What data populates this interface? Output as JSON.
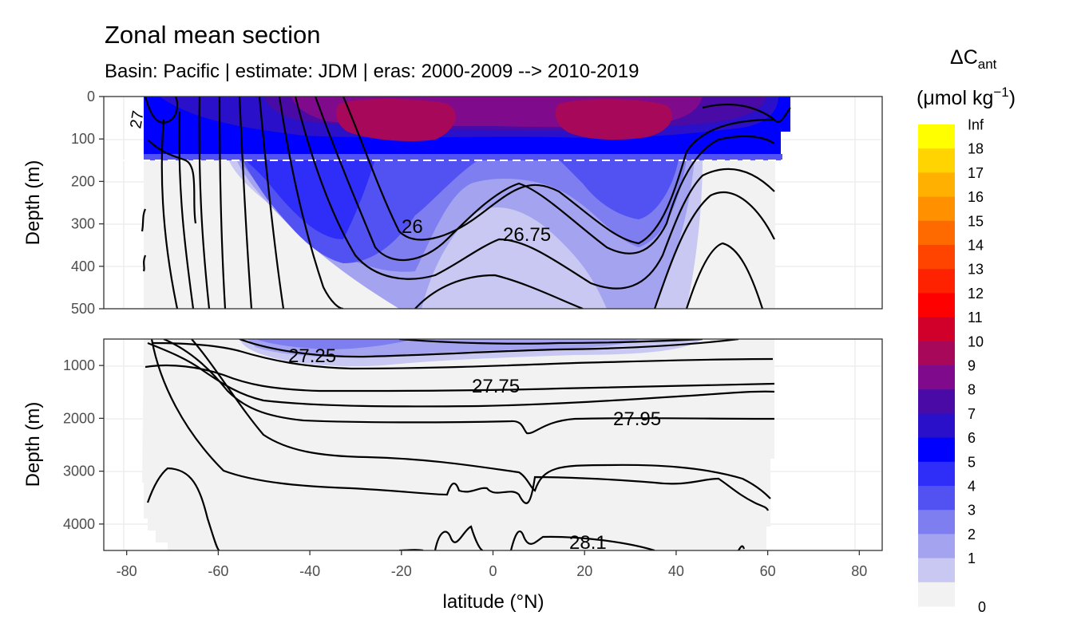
{
  "title": "Zonal mean section",
  "subtitle": "Basin: Pacific | estimate: JDM  | eras: 2000-2009 --> 2010-2019",
  "chart_data": {
    "type": "contour",
    "title": "Zonal mean section",
    "subtitle": "Basin: Pacific | estimate: JDM  | eras: 2000-2009 --> 2010-2019",
    "xlabel": "latitude (°N)",
    "ylabel": "Depth (m)",
    "xlim": [
      -85,
      85
    ],
    "x_ticks": [
      -80,
      -60,
      -40,
      -20,
      0,
      20,
      40,
      60,
      80
    ],
    "x_tick_labels": [
      "-80",
      "-60",
      "-40",
      "-20",
      "0",
      "20",
      "40",
      "60",
      "80"
    ],
    "panels": [
      {
        "name": "upper",
        "ylim": [
          500,
          0
        ],
        "y_ticks": [
          0,
          100,
          200,
          300,
          400,
          500
        ],
        "y_tick_labels": [
          "0",
          "100",
          "200",
          "300",
          "400",
          "500"
        ],
        "reference_depth": 150
      },
      {
        "name": "lower",
        "ylim": [
          4500,
          500
        ],
        "y_ticks": [
          1000,
          2000,
          3000,
          4000
        ],
        "y_tick_labels": [
          "1000",
          "2000",
          "3000",
          "4000"
        ]
      }
    ],
    "data_extent": {
      "lat_min": -76,
      "lat_max_upper": 64,
      "lat_max_deep": 61
    },
    "legend": {
      "title_main": "ΔC",
      "title_sub": "ant",
      "title_unit": "(μmol kg",
      "title_sup": "−1",
      "title_close": ")",
      "position": "right",
      "bins": [
        "0",
        "1",
        "2",
        "3",
        "4",
        "5",
        "6",
        "7",
        "8",
        "9",
        "10",
        "11",
        "12",
        "13",
        "14",
        "15",
        "16",
        "17",
        "18",
        "Inf"
      ],
      "colors": [
        "#f2f2f2",
        "#c8c8f2",
        "#a3a3f0",
        "#7e7ef0",
        "#5252f2",
        "#2e2ef8",
        "#0000ff",
        "#2a10c8",
        "#4a0aa6",
        "#800a8c",
        "#a8085a",
        "#d0002a",
        "#ff0000",
        "#ff2200",
        "#ff4400",
        "#ff6a00",
        "#ff9000",
        "#ffb000",
        "#ffd400",
        "#ffff00"
      ]
    },
    "contour_labels": [
      {
        "text": "26",
        "lat": -18,
        "depth": 305,
        "panel": "upper"
      },
      {
        "text": "26.75",
        "lat": 9,
        "depth": 325,
        "panel": "upper"
      },
      {
        "text": "27",
        "lat": -77,
        "depth": 60,
        "panel": "upper"
      },
      {
        "text": "27.25",
        "lat": -38,
        "depth": 800,
        "panel": "lower"
      },
      {
        "text": "27.75",
        "lat": 1,
        "depth": 1380,
        "panel": "lower"
      },
      {
        "text": "27.95",
        "lat": 30,
        "depth": 2000,
        "panel": "lower"
      },
      {
        "text": "28.1",
        "lat": 19,
        "depth": 4300,
        "panel": "lower"
      }
    ]
  }
}
